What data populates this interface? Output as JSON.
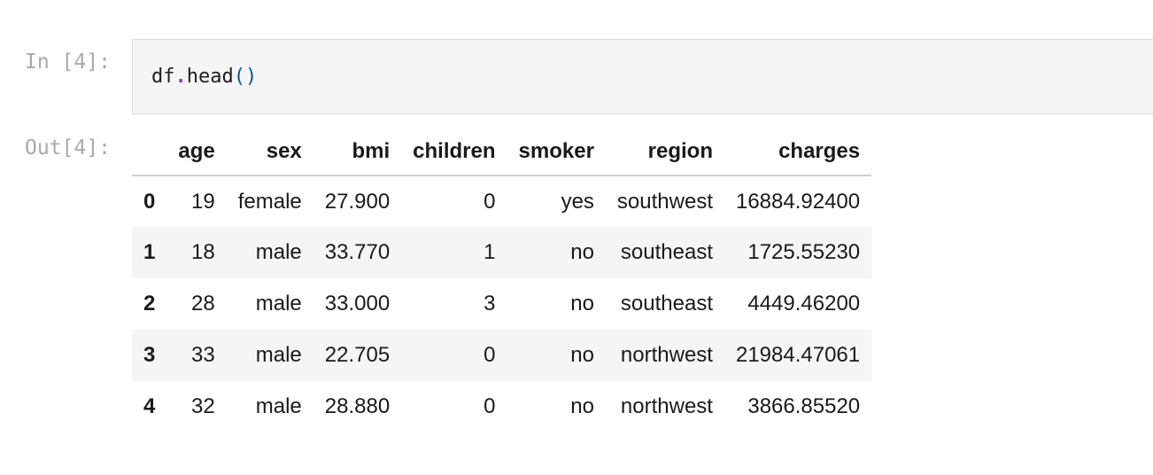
{
  "notebook": {
    "cell": {
      "input_prompt": "In [4]:",
      "code_object": "df",
      "code_dot": ".",
      "code_method": "head",
      "code_parens": "()",
      "output_prompt": "Out[4]:"
    },
    "dataframe": {
      "columns": [
        "",
        "age",
        "sex",
        "bmi",
        "children",
        "smoker",
        "region",
        "charges"
      ],
      "rows": [
        [
          "0",
          "19",
          "female",
          "27.900",
          "0",
          "yes",
          "southwest",
          "16884.92400"
        ],
        [
          "1",
          "18",
          "male",
          "33.770",
          "1",
          "no",
          "southeast",
          "1725.55230"
        ],
        [
          "2",
          "28",
          "male",
          "33.000",
          "3",
          "no",
          "southeast",
          "4449.46200"
        ],
        [
          "3",
          "33",
          "male",
          "22.705",
          "0",
          "no",
          "northwest",
          "21984.47061"
        ],
        [
          "4",
          "32",
          "male",
          "28.880",
          "0",
          "no",
          "northwest",
          "3866.85520"
        ]
      ]
    }
  }
}
